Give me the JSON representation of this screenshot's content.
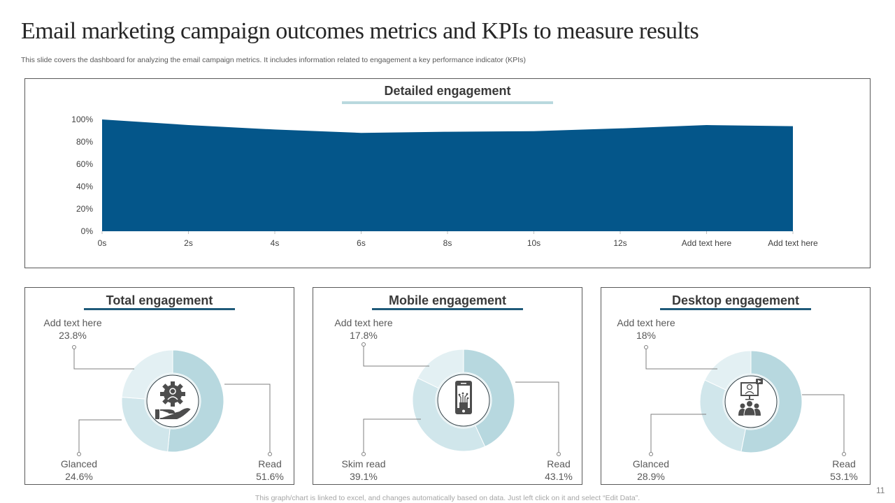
{
  "slide": {
    "title": "Email marketing campaign outcomes metrics and KPIs to measure results",
    "subtitle": "This slide covers the dashboard for analyzing the email campaign metrics. It includes information related to engagement a key performance indicator (KPIs)",
    "footer": "This graph/chart is linked to excel,  and changes automatically based on data. Just left click on it and select “Edit Data”.",
    "page_number": "11"
  },
  "colors": {
    "area_fill": "#04568a",
    "detail_underline": "#b9d9de",
    "donut_underline": "#1f5a7a",
    "donut_read": "#b7d8df",
    "donut_mid": "#d0e6eb",
    "donut_light": "#e3f0f3",
    "icon_gray": "#4d4d4d"
  },
  "chart_data": [
    {
      "type": "area",
      "title": "Detailed engagement",
      "categories": [
        "0s",
        "2s",
        "4s",
        "6s",
        "8s",
        "10s",
        "12s",
        "Add text here",
        "Add text here"
      ],
      "values": [
        100,
        95,
        91,
        88,
        89,
        89.5,
        92,
        95,
        94
      ],
      "y_ticks": [
        "0%",
        "20%",
        "40%",
        "60%",
        "80%",
        "100%"
      ],
      "ylim": [
        0,
        100
      ],
      "xlabel": "",
      "ylabel": "",
      "grid": false,
      "legend": "none"
    },
    {
      "type": "pie",
      "title": "Total engagement",
      "icon": "hand-gear-person-icon",
      "slices": [
        {
          "label": "Read",
          "value": 51.6,
          "display": "51.6%"
        },
        {
          "label": "Glanced",
          "value": 24.6,
          "display": "24.6%"
        },
        {
          "label": "Add text here",
          "value": 23.8,
          "display": "23.8%"
        }
      ]
    },
    {
      "type": "pie",
      "title": "Mobile engagement",
      "icon": "smartphone-icon",
      "slices": [
        {
          "label": "Read",
          "value": 43.1,
          "display": "43.1%"
        },
        {
          "label": "Skim read",
          "value": 39.1,
          "display": "39.1%"
        },
        {
          "label": "Add text here",
          "value": 17.8,
          "display": "17.8%"
        }
      ]
    },
    {
      "type": "pie",
      "title": "Desktop engagement",
      "icon": "webinar-audience-icon",
      "slices": [
        {
          "label": "Read",
          "value": 53.1,
          "display": "53.1%"
        },
        {
          "label": "Glanced",
          "value": 28.9,
          "display": "28.9%"
        },
        {
          "label": "Add text here",
          "value": 18,
          "display": "18%"
        }
      ]
    }
  ]
}
